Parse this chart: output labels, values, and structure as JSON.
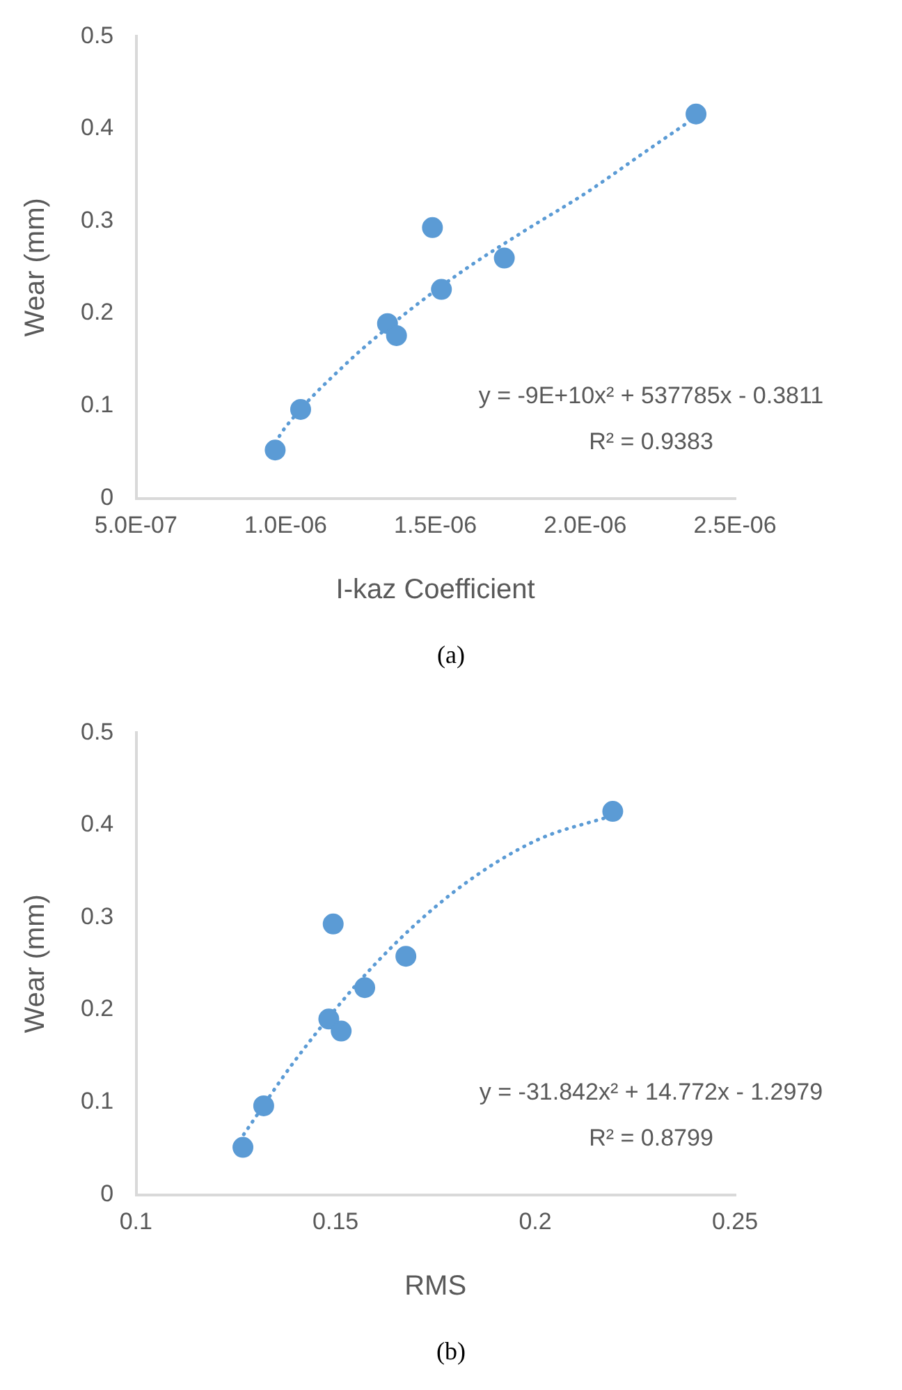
{
  "chart_data": [
    {
      "type": "scatter",
      "xlabel": "I-kaz Coefficient",
      "ylabel": "Wear (mm)",
      "xlim": [
        5e-07,
        2.5e-06
      ],
      "xticks": [
        {
          "value": 5e-07,
          "label": "5.0E-07"
        },
        {
          "value": 1e-06,
          "label": "1.0E-06"
        },
        {
          "value": 1.5e-06,
          "label": "1.5E-06"
        },
        {
          "value": 2e-06,
          "label": "2.0E-06"
        },
        {
          "value": 2.5e-06,
          "label": "2.5E-06"
        }
      ],
      "ylim": [
        0,
        0.5
      ],
      "yticks": [
        0,
        0.1,
        0.2,
        0.3,
        0.4,
        0.5
      ],
      "grid": false,
      "legend": false,
      "marker": "circle",
      "series": [
        {
          "type": "scatter",
          "color": "#5b9bd5",
          "x": [
            9.65e-07,
            1.05e-06,
            1.34e-06,
            1.37e-06,
            1.49e-06,
            1.52e-06,
            1.73e-06,
            2.37e-06
          ],
          "values": [
            0.052,
            0.096,
            0.189,
            0.176,
            0.293,
            0.226,
            0.26,
            0.416
          ]
        },
        {
          "type": "line",
          "color": "#5b9bd5",
          "line_style": "dotted",
          "marker": "none",
          "x": [
            9.65e-07,
            1e-06,
            1.2e-06,
            1.4e-06,
            1.6e-06,
            1.8e-06,
            2e-06,
            2.2e-06,
            2.37e-06
          ],
          "values": [
            0.06,
            0.077,
            0.145,
            0.2,
            0.248,
            0.29,
            0.33,
            0.375,
            0.413
          ]
        }
      ],
      "annotations": [
        "y = -9E+10x² + 537785x - 0.3811",
        "R² = 0.9383",
        "(a)"
      ]
    },
    {
      "type": "scatter",
      "xlabel": "RMS",
      "ylabel": "Wear (mm)",
      "xlim": [
        0.1,
        0.25
      ],
      "xticks": [
        0.1,
        0.15,
        0.2,
        0.25
      ],
      "ylim": [
        0,
        0.5
      ],
      "yticks": [
        0,
        0.1,
        0.2,
        0.3,
        0.4,
        0.5
      ],
      "grid": false,
      "legend": false,
      "marker": "circle",
      "series": [
        {
          "type": "scatter",
          "color": "#5b9bd5",
          "x": [
            0.1268,
            0.132,
            0.1483,
            0.1514,
            0.1494,
            0.1573,
            0.1676,
            0.2194
          ],
          "values": [
            0.051,
            0.096,
            0.19,
            0.177,
            0.293,
            0.224,
            0.258,
            0.415
          ]
        },
        {
          "type": "line",
          "color": "#5b9bd5",
          "line_style": "dotted",
          "marker": "none",
          "x": [
            0.127,
            0.14,
            0.16,
            0.18,
            0.2,
            0.219
          ],
          "values": [
            0.065,
            0.146,
            0.25,
            0.329,
            0.383,
            0.41
          ]
        }
      ],
      "annotations": [
        "y = -31.842x² + 14.772x - 1.2979",
        "R² = 0.8799",
        "(b)"
      ]
    }
  ]
}
